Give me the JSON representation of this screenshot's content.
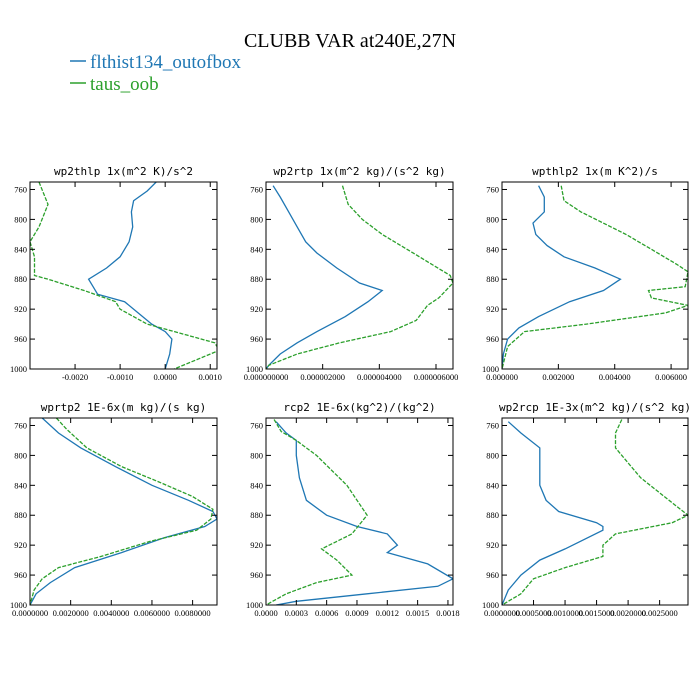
{
  "figure": {
    "title": "CLUBB VAR at240E,27N",
    "legend": [
      {
        "label": "flthist134_outofbox",
        "color": "#1f77b4",
        "dash": "solid"
      },
      {
        "label": "taus_oob",
        "color": "#2ca02c",
        "dash": "dashed"
      }
    ]
  },
  "chart_data": [
    {
      "type": "line",
      "title": "wp2thlp  1x(m^2 K)/s^2",
      "y_ticks": [
        760,
        800,
        840,
        880,
        920,
        960,
        1000
      ],
      "ylim": [
        1000,
        750
      ],
      "xlim": [
        -0.003,
        0.00115
      ],
      "x_ticks": [
        -0.002,
        -0.001,
        0.0,
        0.001
      ],
      "x_tick_labels": [
        "-0.0020",
        "-0.0010",
        "0.0000",
        "0.0010"
      ],
      "series": [
        {
          "color": "#1f77b4",
          "dash": "solid",
          "points": [
            [
              -0.0002,
              750
            ],
            [
              -0.0004,
              762
            ],
            [
              -0.0007,
              775
            ],
            [
              -0.00075,
              790
            ],
            [
              -0.00072,
              810
            ],
            [
              -0.0008,
              830
            ],
            [
              -0.001,
              850
            ],
            [
              -0.0013,
              865
            ],
            [
              -0.0017,
              880
            ],
            [
              -0.0016,
              890
            ],
            [
              -0.0015,
              900
            ],
            [
              -0.0009,
              910
            ],
            [
              -0.0006,
              925
            ],
            [
              -0.0003,
              940
            ],
            [
              0.0,
              950
            ],
            [
              0.00015,
              960
            ],
            [
              0.0001,
              980
            ],
            [
              0.0,
              1000
            ]
          ]
        },
        {
          "color": "#2ca02c",
          "dash": "dashed",
          "points": [
            [
              -0.0028,
              750
            ],
            [
              -0.0026,
              780
            ],
            [
              -0.0028,
              810
            ],
            [
              -0.003,
              830
            ],
            [
              -0.0029,
              850
            ],
            [
              -0.0029,
              875
            ],
            [
              -0.0026,
              880
            ],
            [
              -0.0018,
              895
            ],
            [
              -0.0011,
              910
            ],
            [
              -0.001,
              920
            ],
            [
              -0.0004,
              940
            ],
            [
              0.0005,
              955
            ],
            [
              0.0011,
              965
            ],
            [
              0.0012,
              975
            ],
            [
              0.0008,
              985
            ],
            [
              0.0002,
              1000
            ]
          ]
        }
      ]
    },
    {
      "type": "line",
      "title": "wp2rtp  1x(m^2 kg)/(s^2 kg)",
      "y_ticks": [
        760,
        800,
        840,
        880,
        920,
        960,
        1000
      ],
      "ylim": [
        1000,
        750
      ],
      "xlim": [
        0.0,
        6.6e-06
      ],
      "x_ticks": [
        0.0,
        2e-06,
        4e-06,
        6e-06
      ],
      "x_tick_labels": [
        "0.000000000",
        "0.000002000",
        "0.000004000",
        "0.000006000"
      ],
      "series": [
        {
          "color": "#1f77b4",
          "dash": "solid",
          "points": [
            [
              2.5e-07,
              755
            ],
            [
              5e-07,
              770
            ],
            [
              8e-07,
              790
            ],
            [
              1.1e-06,
              810
            ],
            [
              1.4e-06,
              830
            ],
            [
              1.8e-06,
              845
            ],
            [
              2.5e-06,
              865
            ],
            [
              3.3e-06,
              885
            ],
            [
              4.1e-06,
              895
            ],
            [
              3.6e-06,
              910
            ],
            [
              2.8e-06,
              930
            ],
            [
              1.8e-06,
              950
            ],
            [
              1.1e-06,
              965
            ],
            [
              5e-07,
              980
            ],
            [
              1e-07,
              995
            ],
            [
              0.0,
              1000
            ]
          ]
        },
        {
          "color": "#2ca02c",
          "dash": "dashed",
          "points": [
            [
              2.7e-06,
              755
            ],
            [
              2.9e-06,
              780
            ],
            [
              3.4e-06,
              800
            ],
            [
              4.1e-06,
              820
            ],
            [
              5.2e-06,
              845
            ],
            [
              6.5e-06,
              875
            ],
            [
              6.6e-06,
              885
            ],
            [
              6.1e-06,
              905
            ],
            [
              5.7e-06,
              915
            ],
            [
              5.3e-06,
              935
            ],
            [
              4.4e-06,
              950
            ],
            [
              2.6e-06,
              965
            ],
            [
              1.1e-06,
              980
            ],
            [
              1e-07,
              995
            ],
            [
              0.0,
              1000
            ]
          ]
        }
      ]
    },
    {
      "type": "line",
      "title": "wpthlp2  1x(m K^2)/s",
      "y_ticks": [
        760,
        800,
        840,
        880,
        920,
        960,
        1000
      ],
      "ylim": [
        1000,
        750
      ],
      "xlim": [
        0.0,
        0.0066
      ],
      "x_ticks": [
        0.0,
        0.002,
        0.004,
        0.006
      ],
      "x_tick_labels": [
        "0.000000",
        "0.002000",
        "0.004000",
        "0.006000"
      ],
      "series": [
        {
          "color": "#1f77b4",
          "dash": "solid",
          "points": [
            [
              0.0013,
              755
            ],
            [
              0.0015,
              770
            ],
            [
              0.0015,
              790
            ],
            [
              0.0011,
              805
            ],
            [
              0.0012,
              820
            ],
            [
              0.0016,
              835
            ],
            [
              0.0022,
              850
            ],
            [
              0.0033,
              865
            ],
            [
              0.0042,
              880
            ],
            [
              0.0036,
              895
            ],
            [
              0.0024,
              910
            ],
            [
              0.0013,
              930
            ],
            [
              0.0006,
              945
            ],
            [
              0.0002,
              960
            ],
            [
              5e-05,
              980
            ],
            [
              0.0,
              1000
            ]
          ]
        },
        {
          "color": "#2ca02c",
          "dash": "dashed",
          "points": [
            [
              0.0021,
              755
            ],
            [
              0.0022,
              775
            ],
            [
              0.0028,
              790
            ],
            [
              0.0044,
              820
            ],
            [
              0.0053,
              840
            ],
            [
              0.0062,
              860
            ],
            [
              0.0066,
              870
            ],
            [
              0.0065,
              890
            ],
            [
              0.0052,
              895
            ],
            [
              0.0053,
              905
            ],
            [
              0.0066,
              915
            ],
            [
              0.0058,
              925
            ],
            [
              0.003,
              940
            ],
            [
              0.0008,
              950
            ],
            [
              0.0002,
              970
            ],
            [
              0.0,
              1000
            ]
          ]
        }
      ]
    },
    {
      "type": "line",
      "title": "wprtp2  1E-6x(m kg)/(s kg)",
      "y_ticks": [
        760,
        800,
        840,
        880,
        920,
        960,
        1000
      ],
      "ylim": [
        1000,
        750
      ],
      "xlim": [
        0.0,
        0.0092
      ],
      "x_ticks": [
        0.0,
        0.002,
        0.004,
        0.006,
        0.008
      ],
      "x_tick_labels": [
        "0.0000000",
        "0.0020000",
        "0.0040000",
        "0.0060000",
        "0.0080000"
      ],
      "series": [
        {
          "color": "#1f77b4",
          "dash": "solid",
          "points": [
            [
              0.0006,
              750
            ],
            [
              0.0014,
              770
            ],
            [
              0.0025,
              790
            ],
            [
              0.0042,
              815
            ],
            [
              0.006,
              840
            ],
            [
              0.0078,
              860
            ],
            [
              0.009,
              875
            ],
            [
              0.0092,
              885
            ],
            [
              0.0086,
              895
            ],
            [
              0.0066,
              910
            ],
            [
              0.0045,
              930
            ],
            [
              0.0022,
              950
            ],
            [
              0.001,
              970
            ],
            [
              0.0003,
              985
            ],
            [
              0.0,
              1000
            ]
          ]
        },
        {
          "color": "#2ca02c",
          "dash": "dashed",
          "points": [
            [
              0.0013,
              750
            ],
            [
              0.0018,
              765
            ],
            [
              0.0028,
              790
            ],
            [
              0.0045,
              815
            ],
            [
              0.0063,
              835
            ],
            [
              0.008,
              855
            ],
            [
              0.009,
              872
            ],
            [
              0.0089,
              885
            ],
            [
              0.0082,
              900
            ],
            [
              0.0059,
              915
            ],
            [
              0.0035,
              935
            ],
            [
              0.0014,
              950
            ],
            [
              0.0006,
              965
            ],
            [
              0.0002,
              980
            ],
            [
              0.0,
              1000
            ]
          ]
        }
      ]
    },
    {
      "type": "line",
      "title": "rcp2  1E-6x(kg^2)/(kg^2)",
      "y_ticks": [
        760,
        800,
        840,
        880,
        920,
        960,
        1000
      ],
      "ylim": [
        1000,
        750
      ],
      "xlim": [
        0.0,
        0.00185
      ],
      "x_ticks": [
        0.0,
        0.0003,
        0.0006,
        0.0009,
        0.0012,
        0.0015,
        0.0018
      ],
      "x_tick_labels": [
        "0.0000",
        "0.0003",
        "0.0006",
        "0.0009",
        "0.0012",
        "0.0015",
        "0.0018"
      ],
      "series": [
        {
          "color": "#1f77b4",
          "dash": "solid",
          "points": [
            [
              0.0001,
              755
            ],
            [
              0.0002,
              770
            ],
            [
              0.0003,
              780
            ],
            [
              0.0003,
              800
            ],
            [
              0.00033,
              830
            ],
            [
              0.0004,
              860
            ],
            [
              0.0006,
              880
            ],
            [
              0.0009,
              895
            ],
            [
              0.0012,
              905
            ],
            [
              0.0013,
              920
            ],
            [
              0.0012,
              930
            ],
            [
              0.0016,
              945
            ],
            [
              0.00185,
              965
            ],
            [
              0.0017,
              975
            ],
            [
              0.001,
              985
            ],
            [
              0.0003,
              995
            ],
            [
              0.0001,
              1000
            ]
          ]
        },
        {
          "color": "#2ca02c",
          "dash": "dashed",
          "points": [
            [
              8e-05,
              752
            ],
            [
              0.00015,
              768
            ],
            [
              0.0003,
              780
            ],
            [
              0.0005,
              800
            ],
            [
              0.0008,
              840
            ],
            [
              0.001,
              880
            ],
            [
              0.00085,
              905
            ],
            [
              0.0007,
              915
            ],
            [
              0.00055,
              925
            ],
            [
              0.0007,
              940
            ],
            [
              0.00085,
              960
            ],
            [
              0.0005,
              970
            ],
            [
              0.0002,
              985
            ],
            [
              0.0,
              1000
            ]
          ]
        }
      ]
    },
    {
      "type": "line",
      "title": "wp2rcp  1E-3x(m^2 kg)/(s^2 kg)",
      "y_ticks": [
        760,
        800,
        840,
        880,
        920,
        960,
        1000
      ],
      "ylim": [
        1000,
        750
      ],
      "xlim": [
        0.0,
        0.00295
      ],
      "x_ticks": [
        0.0,
        0.0005,
        0.001,
        0.0015,
        0.002,
        0.0025
      ],
      "x_tick_labels": [
        "0.0000000",
        "0.0005000",
        "0.0010000",
        "0.0015000",
        "0.0020000",
        "0.0025000"
      ],
      "series": [
        {
          "color": "#1f77b4",
          "dash": "solid",
          "points": [
            [
              0.0001,
              755
            ],
            [
              0.0003,
              770
            ],
            [
              0.0006,
              790
            ],
            [
              0.0006,
              820
            ],
            [
              0.0006,
              840
            ],
            [
              0.0007,
              860
            ],
            [
              0.0009,
              875
            ],
            [
              0.0015,
              890
            ],
            [
              0.0016,
              895
            ],
            [
              0.0016,
              900
            ],
            [
              0.001,
              925
            ],
            [
              0.0006,
              940
            ],
            [
              0.0003,
              960
            ],
            [
              0.0001,
              980
            ],
            [
              0.0,
              1000
            ]
          ]
        },
        {
          "color": "#2ca02c",
          "dash": "dashed",
          "points": [
            [
              0.0019,
              752
            ],
            [
              0.0018,
              770
            ],
            [
              0.0018,
              790
            ],
            [
              0.002,
              810
            ],
            [
              0.0022,
              830
            ],
            [
              0.0025,
              850
            ],
            [
              0.0028,
              870
            ],
            [
              0.00295,
              880
            ],
            [
              0.0027,
              890
            ],
            [
              0.0018,
              905
            ],
            [
              0.0016,
              920
            ],
            [
              0.0016,
              935
            ],
            [
              0.001,
              950
            ],
            [
              0.0005,
              965
            ],
            [
              0.0003,
              985
            ],
            [
              0.0,
              1000
            ]
          ]
        }
      ]
    }
  ]
}
